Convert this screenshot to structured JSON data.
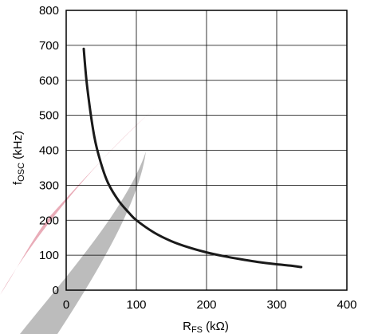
{
  "chart_data": {
    "type": "line",
    "xlabel": {
      "main": "R",
      "sub": "FS",
      "unit": " (kΩ)"
    },
    "ylabel": {
      "main": "f",
      "sub": "OSC",
      "unit": " (kHz)"
    },
    "xlim": [
      0,
      400
    ],
    "ylim": [
      0,
      800
    ],
    "x_ticks": [
      0,
      100,
      200,
      300,
      400
    ],
    "y_ticks": [
      0,
      100,
      200,
      300,
      400,
      500,
      600,
      700,
      800
    ],
    "grid": true,
    "series": [
      {
        "color": "#1a1a1a",
        "x": [
          25,
          30,
          40,
          50,
          60,
          75,
          90,
          100,
          125,
          150,
          175,
          200,
          225,
          250,
          275,
          300,
          320,
          335
        ],
        "y": [
          690,
          580,
          440,
          360,
          305,
          255,
          220,
          200,
          165,
          140,
          122,
          108,
          97,
          88,
          80,
          74,
          70,
          66
        ]
      }
    ],
    "watermark_colors": {
      "red": "#e8a8b4",
      "gray": "#b8b8b8"
    }
  }
}
